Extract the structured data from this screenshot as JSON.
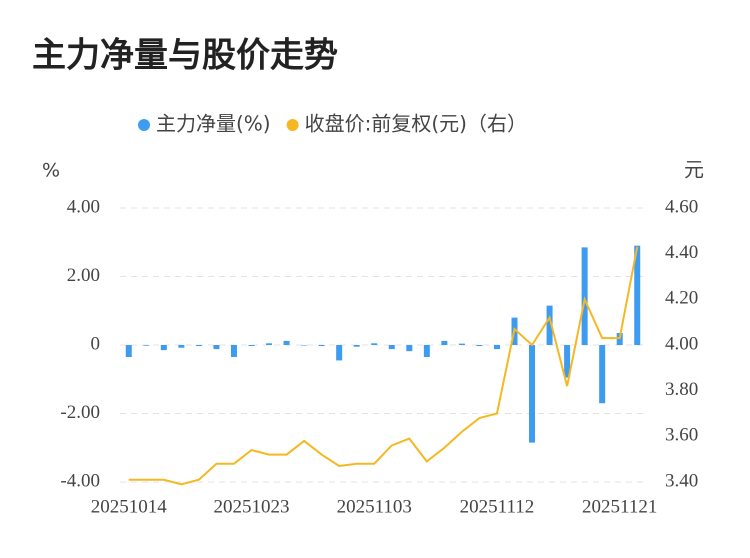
{
  "chart_data": {
    "type": "bar-line",
    "title": "主力净量与股价走势",
    "y_label": "%",
    "y2_label": "元",
    "categories": [
      "20251014",
      null,
      null,
      null,
      null,
      null,
      null,
      "20251023",
      null,
      null,
      null,
      null,
      null,
      null,
      "20251103",
      null,
      null,
      null,
      null,
      null,
      null,
      "20251112",
      null,
      null,
      null,
      null,
      null,
      null,
      "20251121",
      null
    ],
    "series": [
      {
        "name": "主力净量(%)",
        "type": "bar",
        "color": "#3d9cf0",
        "axis": "y",
        "values": [
          -0.35,
          -0.02,
          -0.15,
          -0.08,
          -0.03,
          -0.12,
          -0.35,
          -0.03,
          0.05,
          0.12,
          0,
          -0.03,
          -0.45,
          -0.05,
          0.05,
          -0.12,
          -0.18,
          -0.35,
          0.12,
          0.04,
          -0.03,
          -0.12,
          0.8,
          -2.85,
          1.15,
          -0.95,
          2.85,
          -1.7,
          0.35,
          2.9
        ]
      },
      {
        "name": "收盘价:前复权(元)（右）",
        "type": "line",
        "color": "#f5b822",
        "axis": "y2",
        "values": [
          3.41,
          3.41,
          3.41,
          3.39,
          3.41,
          3.48,
          3.48,
          3.54,
          3.52,
          3.52,
          3.58,
          3.52,
          3.47,
          3.48,
          3.48,
          3.56,
          3.59,
          3.49,
          3.55,
          3.62,
          3.68,
          3.7,
          4.07,
          4.0,
          4.12,
          3.82,
          4.2,
          4.03,
          4.03,
          4.43
        ]
      }
    ],
    "ylim": [
      -4,
      4
    ],
    "yticks": [
      {
        "value": -4,
        "label": "-4.00"
      },
      {
        "value": -2,
        "label": "-2.00"
      },
      0,
      {
        "value": 2,
        "label": "2.00"
      },
      {
        "value": 4,
        "label": "4.00"
      }
    ],
    "y2lim": [
      3.4,
      4.6
    ],
    "y2ticks": [
      {
        "value": 3.4,
        "label": "3.40"
      },
      {
        "value": 3.6,
        "label": "3.60"
      },
      {
        "value": 3.8,
        "label": "3.80"
      },
      {
        "value": 4.0,
        "label": "4.00"
      },
      {
        "value": 4.2,
        "label": "4.20"
      },
      {
        "value": 4.4,
        "label": "4.40"
      },
      {
        "value": 4.6,
        "label": "4.60"
      }
    ],
    "grid": true,
    "legend": "top"
  }
}
